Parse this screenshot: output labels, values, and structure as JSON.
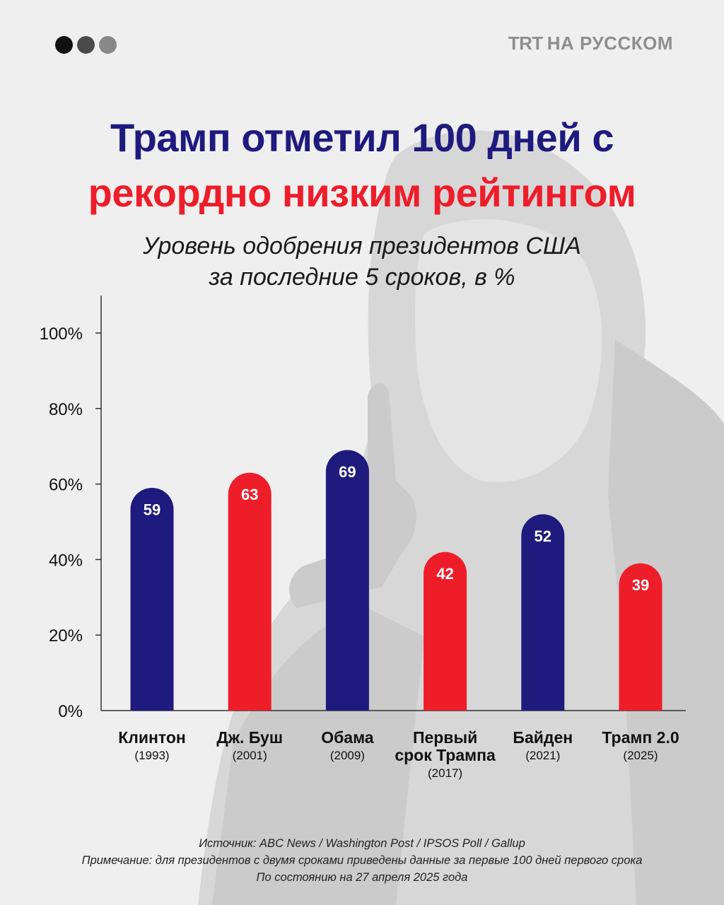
{
  "header": {
    "brand_trt": "TRT",
    "brand_rest": "НА РУССКОМ",
    "dot_colors": [
      "#111111",
      "#4a4a4a",
      "#888888"
    ]
  },
  "title_line1": "Трамп отметил 100 дней с",
  "title_line2": "рекордно низким рейтингом",
  "subtitle_line1": "Уровень одобрения президентов США",
  "subtitle_line2": "за последние 5 сроков, в %",
  "colors": {
    "blue": "#1f1a7e",
    "red": "#ee1d2a"
  },
  "chart_data": {
    "type": "bar",
    "title": "Уровень одобрения президентов США за последние 5 сроков, в %",
    "xlabel": "",
    "ylabel": "",
    "ylim": [
      0,
      100
    ],
    "yticks": [
      "0%",
      "20%",
      "40%",
      "60%",
      "80%",
      "100%"
    ],
    "yticks_values": [
      0,
      20,
      40,
      60,
      80,
      100
    ],
    "grid": false,
    "categories": [
      {
        "name_lines": [
          "Клинтон"
        ],
        "year": "(1993)"
      },
      {
        "name_lines": [
          "Дж. Буш"
        ],
        "year": "(2001)"
      },
      {
        "name_lines": [
          "Обама"
        ],
        "year": "(2009)"
      },
      {
        "name_lines": [
          "Первый",
          "срок Трампа"
        ],
        "year": "(2017)"
      },
      {
        "name_lines": [
          "Байден"
        ],
        "year": "(2021)"
      },
      {
        "name_lines": [
          "Трамп 2.0"
        ],
        "year": "(2025)"
      }
    ],
    "values": [
      59,
      63,
      69,
      42,
      52,
      39
    ],
    "data_labels": [
      "59",
      "63",
      "69",
      "42",
      "52",
      "39"
    ],
    "bar_colors": [
      "#1f1a7e",
      "#ee1d2a",
      "#1f1a7e",
      "#ee1d2a",
      "#1f1a7e",
      "#ee1d2a"
    ]
  },
  "footer": {
    "source": "Источник: ABC News / Washington Post / IPSOS Poll / Gallup",
    "note": "Примечание: для президентов с двумя сроками приведены данные за первые 100 дней первого срока",
    "date": "По состоянию на 27 апреля 2025 года"
  }
}
